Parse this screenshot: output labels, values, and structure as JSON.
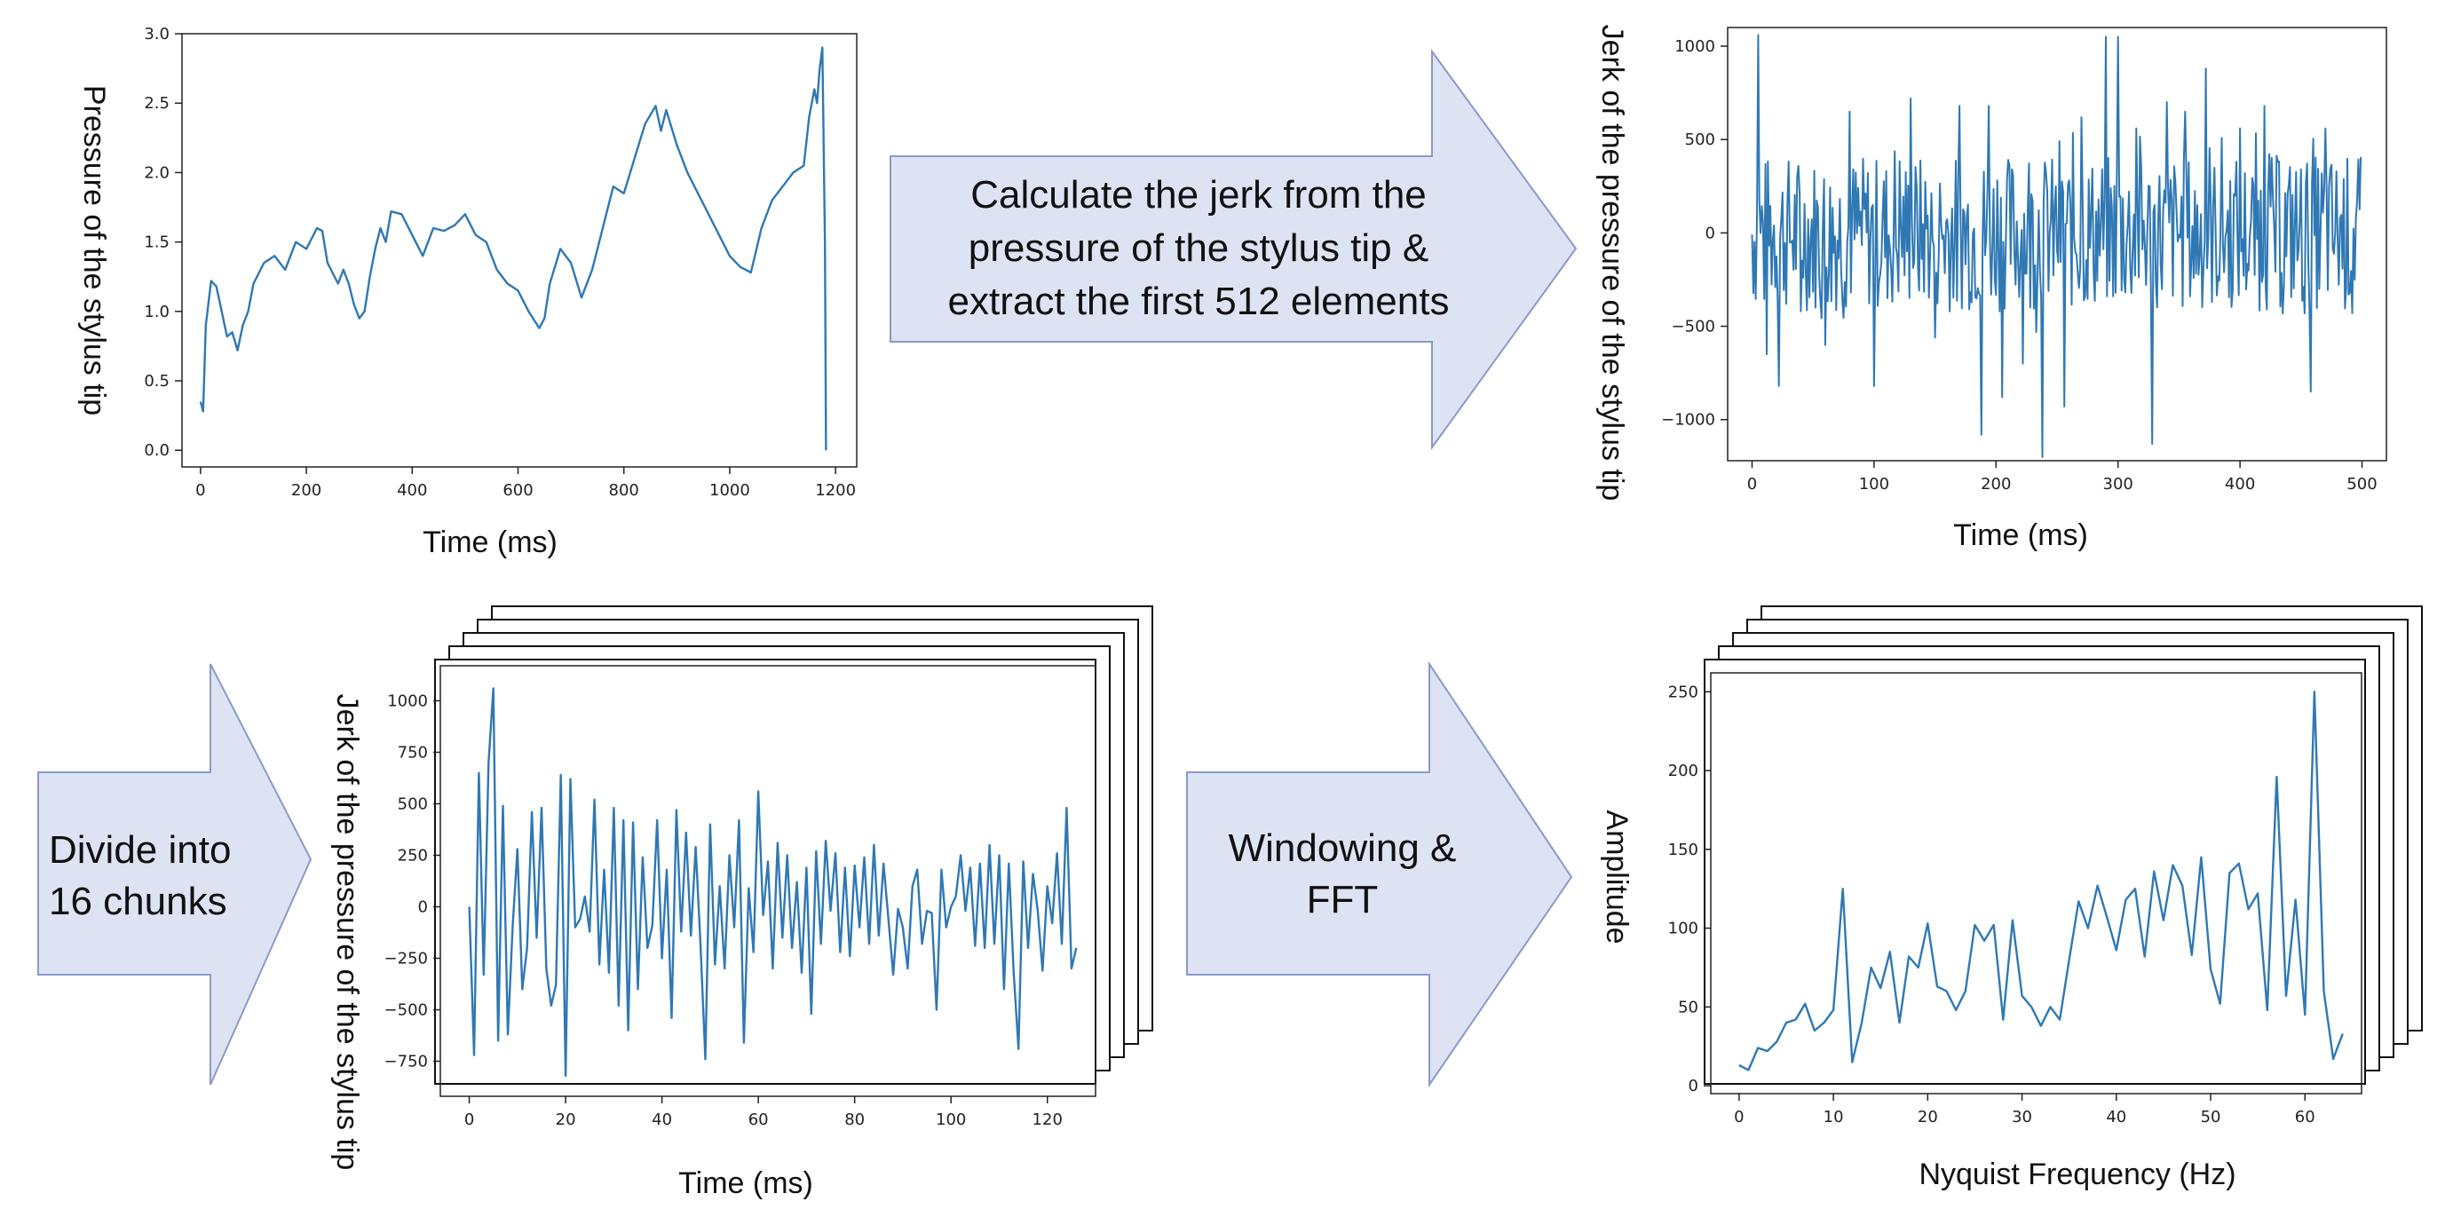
{
  "arrows": [
    {
      "id": "arrow-jerk",
      "lines": [
        "Calculate the jerk from the",
        "pressure of the stylus tip &",
        "extract the first 512 elements"
      ]
    },
    {
      "id": "arrow-divide",
      "lines": [
        "Divide into",
        "16 chunks"
      ]
    },
    {
      "id": "arrow-fft",
      "lines": [
        "Windowing &",
        "FFT"
      ]
    }
  ],
  "colors": {
    "line": "#2f78b4",
    "arrow_fill": "#dde3f3",
    "arrow_stroke": "#8a9ac8"
  },
  "chart_data": [
    {
      "id": "pressure",
      "type": "line",
      "xlabel": "Time (ms)",
      "ylabel": "Pressure of the stylus tip",
      "xlim": [
        -35,
        1240
      ],
      "ylim": [
        -0.12,
        3.0
      ],
      "xticks": [
        0,
        200,
        400,
        600,
        800,
        1000,
        1200
      ],
      "xtick_labels": [
        "0",
        "200",
        "400",
        "600",
        "800",
        "1000",
        "1200"
      ],
      "yticks": [
        0,
        0.5,
        1.0,
        1.5,
        2.0,
        2.5,
        3.0
      ],
      "ytick_labels": [
        "0.0",
        "0.5",
        "1.0",
        "1.5",
        "2.0",
        "2.5",
        "3.0"
      ],
      "x": [
        0,
        5,
        10,
        20,
        30,
        40,
        50,
        60,
        70,
        80,
        90,
        100,
        120,
        140,
        160,
        180,
        200,
        220,
        230,
        240,
        260,
        270,
        280,
        290,
        300,
        310,
        320,
        330,
        340,
        350,
        360,
        380,
        400,
        420,
        440,
        460,
        480,
        500,
        520,
        540,
        560,
        580,
        600,
        620,
        640,
        650,
        660,
        680,
        700,
        720,
        740,
        760,
        780,
        800,
        820,
        840,
        860,
        870,
        880,
        900,
        920,
        940,
        960,
        980,
        1000,
        1020,
        1040,
        1060,
        1080,
        1100,
        1120,
        1140,
        1150,
        1160,
        1165,
        1170,
        1175,
        1180,
        1182
      ],
      "values": [
        0.35,
        0.28,
        0.9,
        1.22,
        1.18,
        1.0,
        0.82,
        0.85,
        0.72,
        0.9,
        1.0,
        1.2,
        1.35,
        1.4,
        1.3,
        1.5,
        1.45,
        1.6,
        1.58,
        1.35,
        1.2,
        1.3,
        1.2,
        1.05,
        0.95,
        1.0,
        1.25,
        1.45,
        1.6,
        1.5,
        1.72,
        1.7,
        1.55,
        1.4,
        1.6,
        1.58,
        1.62,
        1.7,
        1.55,
        1.5,
        1.3,
        1.2,
        1.15,
        1.0,
        0.88,
        0.95,
        1.2,
        1.45,
        1.35,
        1.1,
        1.3,
        1.6,
        1.9,
        1.85,
        2.1,
        2.35,
        2.48,
        2.3,
        2.45,
        2.2,
        2.0,
        1.85,
        1.7,
        1.55,
        1.4,
        1.32,
        1.28,
        1.6,
        1.8,
        1.9,
        2.0,
        2.05,
        2.4,
        2.6,
        2.5,
        2.75,
        2.9,
        1.5,
        0.0
      ]
    },
    {
      "id": "jerk",
      "type": "line",
      "xlabel": "Time (ms)",
      "ylabel": "Jerk of the pressure of the stylus tip",
      "xlim": [
        -20,
        520
      ],
      "ylim": [
        -1220,
        1100
      ],
      "xticks": [
        0,
        100,
        200,
        300,
        400,
        500
      ],
      "xtick_labels": [
        "0",
        "100",
        "200",
        "300",
        "400",
        "500"
      ],
      "yticks": [
        -1000,
        -500,
        0,
        500,
        1000
      ],
      "ytick_labels": [
        "−1000",
        "−500",
        "0",
        "500",
        "1000"
      ],
      "n": 500,
      "amp": 420,
      "seed": 7,
      "spikes": [
        [
          5,
          1060
        ],
        [
          12,
          -650
        ],
        [
          22,
          -820
        ],
        [
          40,
          -420
        ],
        [
          60,
          -600
        ],
        [
          80,
          650
        ],
        [
          100,
          -820
        ],
        [
          130,
          720
        ],
        [
          150,
          -560
        ],
        [
          170,
          680
        ],
        [
          188,
          -1080
        ],
        [
          194,
          680
        ],
        [
          205,
          -880
        ],
        [
          222,
          -700
        ],
        [
          238,
          -1200
        ],
        [
          256,
          -930
        ],
        [
          270,
          620
        ],
        [
          290,
          1050
        ],
        [
          300,
          1050
        ],
        [
          315,
          560
        ],
        [
          328,
          -1130
        ],
        [
          340,
          700
        ],
        [
          355,
          650
        ],
        [
          372,
          880
        ],
        [
          400,
          560
        ],
        [
          420,
          680
        ],
        [
          458,
          -850
        ],
        [
          470,
          560
        ],
        [
          492,
          -430
        ]
      ]
    },
    {
      "id": "chunk",
      "type": "line",
      "xlabel": "Time (ms)",
      "ylabel": "Jerk of the pressure of the stylus tip",
      "xlim": [
        -6,
        130
      ],
      "ylim": [
        -920,
        1170
      ],
      "xticks": [
        0,
        20,
        40,
        60,
        80,
        100,
        120
      ],
      "xtick_labels": [
        "0",
        "20",
        "40",
        "60",
        "80",
        "100",
        "120"
      ],
      "yticks": [
        -750,
        -500,
        -250,
        0,
        250,
        500,
        750,
        1000
      ],
      "ytick_labels": [
        "−750",
        "−500",
        "−250",
        "0",
        "250",
        "500",
        "750",
        "1000"
      ],
      "values": [
        0,
        -720,
        650,
        -330,
        700,
        1060,
        -650,
        490,
        -620,
        -100,
        280,
        -400,
        -200,
        460,
        -150,
        480,
        -300,
        -480,
        -380,
        640,
        -820,
        620,
        -100,
        -60,
        50,
        -120,
        520,
        -280,
        180,
        -320,
        480,
        -480,
        420,
        -600,
        410,
        -400,
        240,
        -200,
        -90,
        420,
        -250,
        180,
        -540,
        470,
        -120,
        360,
        -140,
        290,
        -180,
        -740,
        400,
        -280,
        100,
        -300,
        250,
        -100,
        420,
        -660,
        90,
        -220,
        560,
        -40,
        220,
        -300,
        310,
        -150,
        250,
        -200,
        120,
        -320,
        190,
        -520,
        270,
        -180,
        320,
        -20,
        260,
        -220,
        190,
        -240,
        200,
        -100,
        240,
        -180,
        300,
        -140,
        210,
        -60,
        -330,
        -10,
        -100,
        -300,
        100,
        180,
        -180,
        -20,
        -30,
        -500,
        180,
        -100,
        0,
        50,
        250,
        -20,
        190,
        -190,
        210,
        -200,
        300,
        -180,
        250,
        -400,
        210,
        -320,
        -690,
        220,
        -200,
        160,
        -20,
        -310,
        100,
        -80,
        260,
        -180,
        480,
        -300,
        -200
      ]
    },
    {
      "id": "spectrum",
      "type": "line",
      "xlabel": "Nyquist Frequency (Hz)",
      "ylabel": "Amplitude",
      "xlim": [
        -3,
        66
      ],
      "ylim": [
        -5,
        262
      ],
      "xticks": [
        0,
        10,
        20,
        30,
        40,
        50,
        60
      ],
      "xtick_labels": [
        "0",
        "10",
        "20",
        "30",
        "40",
        "50",
        "60"
      ],
      "yticks": [
        0,
        50,
        100,
        150,
        200,
        250
      ],
      "ytick_labels": [
        "0",
        "50",
        "100",
        "150",
        "200",
        "250"
      ],
      "values": [
        13,
        10,
        24,
        22,
        28,
        40,
        42,
        52,
        35,
        40,
        48,
        125,
        15,
        40,
        75,
        62,
        85,
        40,
        82,
        75,
        103,
        63,
        60,
        48,
        60,
        102,
        92,
        102,
        42,
        105,
        57,
        50,
        38,
        50,
        42,
        80,
        117,
        100,
        127,
        107,
        86,
        118,
        125,
        82,
        136,
        105,
        140,
        127,
        83,
        145,
        74,
        52,
        135,
        141,
        112,
        122,
        48,
        196,
        57,
        118,
        45,
        250,
        60,
        17,
        33
      ]
    }
  ]
}
